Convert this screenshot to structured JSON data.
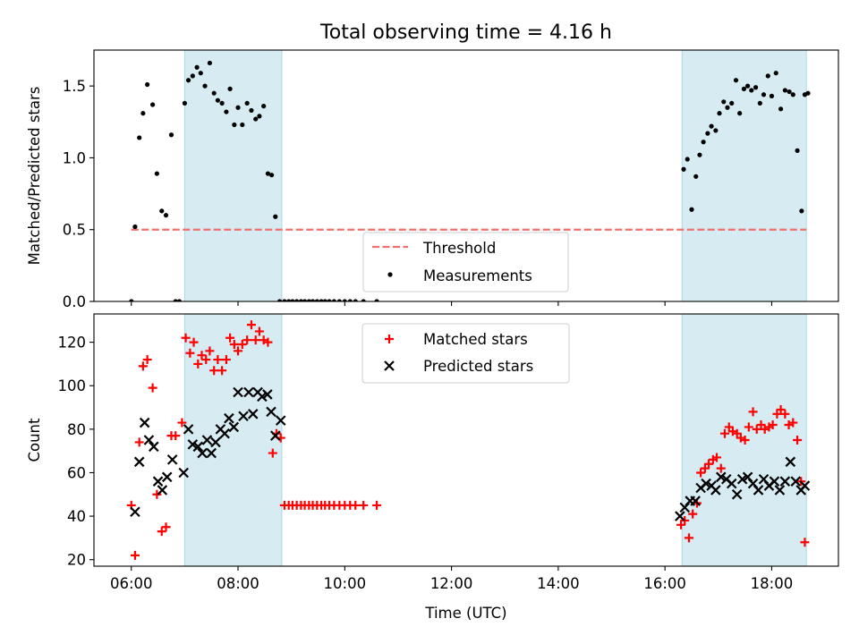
{
  "chart_data": [
    {
      "type": "scatter",
      "title": "Total observing time = 4.16 h",
      "xlabel": "",
      "ylabel": "Matched/Predicted stars",
      "xlim": [
        5.3,
        19.25
      ],
      "ylim": [
        0,
        1.75
      ],
      "xticks": [
        6,
        8,
        10,
        12,
        14,
        16,
        18
      ],
      "yticks": [
        0.0,
        0.5,
        1.0,
        1.5
      ],
      "ytick_labels": [
        "0.0",
        "0.5",
        "1.0",
        "1.5"
      ],
      "shaded_intervals": [
        [
          7.0,
          8.82
        ],
        [
          16.32,
          18.65
        ]
      ],
      "threshold": {
        "name": "Threshold",
        "y": 0.5,
        "x_range": [
          6.0,
          18.65
        ],
        "color": "#f07070"
      },
      "legend": {
        "placement": "bottom-center",
        "entries": [
          "Threshold",
          "Measurements"
        ]
      },
      "series": [
        {
          "name": "Measurements",
          "color": "#000000",
          "marker": "dot",
          "x": [
            6.0,
            6.07,
            6.15,
            6.22,
            6.3,
            6.4,
            6.48,
            6.57,
            6.65,
            6.75,
            6.83,
            6.9,
            7.0,
            7.07,
            7.15,
            7.23,
            7.3,
            7.38,
            7.47,
            7.55,
            7.62,
            7.7,
            7.78,
            7.85,
            7.93,
            8.0,
            8.08,
            8.17,
            8.25,
            8.33,
            8.4,
            8.48,
            8.56,
            8.63,
            8.7,
            8.78,
            8.87,
            8.95,
            9.02,
            9.1,
            9.18,
            9.25,
            9.33,
            9.4,
            9.48,
            9.56,
            9.63,
            9.71,
            9.8,
            9.9,
            10.0,
            10.1,
            10.2,
            10.35,
            10.6,
            16.35,
            16.42,
            16.5,
            16.58,
            16.65,
            16.72,
            16.8,
            16.87,
            16.95,
            17.02,
            17.1,
            17.17,
            17.25,
            17.33,
            17.4,
            17.48,
            17.55,
            17.62,
            17.7,
            17.78,
            17.85,
            17.93,
            18.0,
            18.08,
            18.17,
            18.25,
            18.33,
            18.4,
            18.48,
            18.56,
            18.62,
            18.68
          ],
          "y": [
            0.0,
            0.52,
            1.14,
            1.31,
            1.51,
            1.37,
            0.89,
            0.63,
            0.6,
            1.16,
            0.0,
            0.0,
            1.38,
            1.54,
            1.57,
            1.63,
            1.59,
            1.5,
            1.66,
            1.45,
            1.4,
            1.38,
            1.32,
            1.48,
            1.23,
            1.35,
            1.23,
            1.38,
            1.33,
            1.27,
            1.29,
            1.36,
            0.89,
            0.88,
            0.59,
            0.0,
            0.0,
            0.0,
            0.0,
            0.0,
            0.0,
            0.0,
            0.0,
            0.0,
            0.0,
            0.0,
            0.0,
            0.0,
            0.0,
            0.0,
            0.0,
            0.0,
            0.0,
            0.0,
            0.0,
            0.92,
            0.99,
            0.64,
            0.87,
            1.02,
            1.11,
            1.17,
            1.22,
            1.19,
            1.31,
            1.39,
            1.35,
            1.38,
            1.54,
            1.31,
            1.48,
            1.5,
            1.47,
            1.49,
            1.38,
            1.44,
            1.57,
            1.43,
            1.59,
            1.34,
            1.47,
            1.46,
            1.44,
            1.05,
            0.63,
            1.44,
            1.45
          ]
        }
      ]
    },
    {
      "type": "scatter",
      "title": "",
      "xlabel": "Time (UTC)",
      "ylabel": "Count",
      "xlim": [
        5.3,
        19.25
      ],
      "ylim": [
        17,
        133
      ],
      "xticks": [
        6,
        8,
        10,
        12,
        14,
        16,
        18
      ],
      "xtick_labels": [
        "06:00",
        "08:00",
        "10:00",
        "12:00",
        "14:00",
        "16:00",
        "18:00"
      ],
      "yticks": [
        20,
        40,
        60,
        80,
        100,
        120
      ],
      "ytick_labels": [
        "20",
        "40",
        "60",
        "80",
        "100",
        "120"
      ],
      "shaded_intervals": [
        [
          7.0,
          8.82
        ],
        [
          16.32,
          18.65
        ]
      ],
      "legend": {
        "placement": "top-center",
        "entries": [
          "Matched stars",
          "Predicted stars"
        ]
      },
      "series": [
        {
          "name": "Matched stars",
          "color": "#ff0000",
          "marker": "plus",
          "x": [
            6.0,
            6.07,
            6.15,
            6.22,
            6.3,
            6.4,
            6.48,
            6.57,
            6.65,
            6.75,
            6.83,
            6.95,
            7.02,
            7.1,
            7.17,
            7.25,
            7.32,
            7.4,
            7.47,
            7.55,
            7.62,
            7.7,
            7.78,
            7.85,
            7.93,
            8.0,
            8.08,
            8.17,
            8.25,
            8.33,
            8.4,
            8.48,
            8.56,
            8.65,
            8.72,
            8.8,
            8.87,
            8.95,
            9.02,
            9.1,
            9.18,
            9.25,
            9.33,
            9.4,
            9.48,
            9.56,
            9.63,
            9.71,
            9.8,
            9.9,
            10.0,
            10.1,
            10.2,
            10.35,
            10.6,
            16.3,
            16.37,
            16.45,
            16.52,
            16.6,
            16.67,
            16.75,
            16.82,
            16.9,
            16.97,
            17.05,
            17.12,
            17.2,
            17.27,
            17.35,
            17.42,
            17.5,
            17.57,
            17.65,
            17.72,
            17.8,
            17.87,
            17.95,
            18.02,
            18.1,
            18.17,
            18.25,
            18.32,
            18.4,
            18.48,
            18.55,
            18.62
          ],
          "y": [
            45,
            22,
            74,
            109,
            112,
            99,
            50,
            33,
            35,
            77,
            77,
            83,
            122,
            115,
            120,
            110,
            114,
            112,
            116,
            107,
            112,
            107,
            112,
            122,
            119,
            116,
            119,
            121,
            128,
            121,
            125,
            121,
            120,
            69,
            78,
            76,
            45,
            45,
            45,
            45,
            45,
            45,
            45,
            45,
            45,
            45,
            45,
            45,
            45,
            45,
            45,
            45,
            45,
            45,
            45,
            36,
            38,
            30,
            41,
            46,
            60,
            62,
            64,
            66,
            67,
            62,
            78,
            81,
            79,
            78,
            76,
            75,
            81,
            88,
            80,
            82,
            80,
            81,
            82,
            87,
            89,
            87,
            82,
            83,
            75,
            56,
            28
          ]
        },
        {
          "name": "Predicted stars",
          "color": "#000000",
          "marker": "x",
          "x": [
            6.07,
            6.15,
            6.25,
            6.33,
            6.42,
            6.5,
            6.58,
            6.67,
            6.77,
            6.98,
            7.07,
            7.15,
            7.25,
            7.33,
            7.42,
            7.5,
            7.58,
            7.67,
            7.75,
            7.83,
            7.92,
            8.0,
            8.1,
            8.2,
            8.28,
            8.37,
            8.45,
            8.55,
            8.62,
            8.7,
            8.8,
            16.28,
            16.37,
            16.47,
            16.57,
            16.67,
            16.77,
            16.87,
            16.95,
            17.05,
            17.15,
            17.25,
            17.35,
            17.45,
            17.55,
            17.65,
            17.75,
            17.85,
            17.95,
            18.05,
            18.15,
            18.25,
            18.35,
            18.45,
            18.55,
            18.62
          ],
          "y": [
            42,
            65,
            83,
            75,
            72,
            56,
            52,
            58,
            66,
            60,
            80,
            73,
            72,
            69,
            75,
            69,
            74,
            80,
            78,
            85,
            81,
            97,
            86,
            97,
            87,
            97,
            95,
            96,
            88,
            77,
            84,
            40,
            44,
            47,
            47,
            53,
            55,
            54,
            52,
            58,
            57,
            55,
            50,
            57,
            58,
            55,
            52,
            57,
            54,
            56,
            52,
            56,
            65,
            56,
            52,
            54
          ]
        }
      ]
    }
  ]
}
